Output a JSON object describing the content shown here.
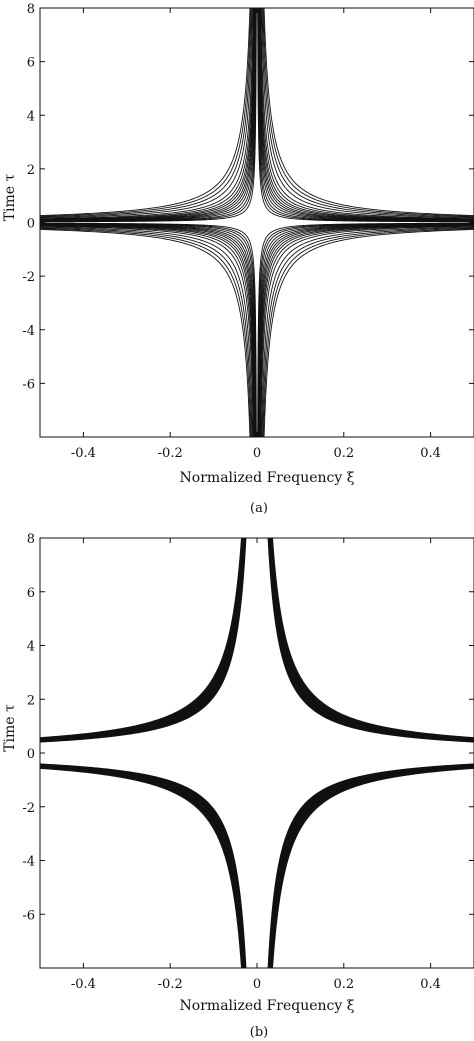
{
  "chart_data": [
    {
      "panel": "(a)",
      "type": "line",
      "xlabel": "Normalized Frequency ξ",
      "ylabel": "Time τ",
      "xlim": [
        -0.5,
        0.5
      ],
      "ylim": [
        -8,
        8
      ],
      "xticks": [
        "-0.4",
        "-0.2",
        "0",
        "0.2",
        "0.4"
      ],
      "yticks": [
        "8",
        "6",
        "4",
        "2",
        "0",
        "-2",
        "-4",
        "-6"
      ],
      "grid": false,
      "curve_form": "τ · ξ = ±c (hyperbolic contours)",
      "contour_levels": [
        0.012,
        0.016,
        0.02,
        0.025,
        0.03,
        0.035,
        0.04,
        0.046,
        0.052,
        0.06,
        0.07,
        0.085,
        0.1,
        0.115,
        0.13
      ],
      "caption": "(a)"
    },
    {
      "panel": "(b)",
      "type": "line",
      "xlabel": "Normalized Frequency ξ",
      "ylabel": "Time τ",
      "xlim": [
        -0.5,
        0.5
      ],
      "ylim": [
        -8,
        8
      ],
      "xticks": [
        "-0.4",
        "-0.2",
        "0",
        "0.2",
        "0.4"
      ],
      "yticks": [
        "8",
        "6",
        "4",
        "2",
        "0",
        "-2",
        "-4",
        "-6"
      ],
      "grid": false,
      "curve_form": "τ · ξ = ±c (hyperbolic contours)",
      "contour_levels": [
        0.21,
        0.215,
        0.22,
        0.225,
        0.23,
        0.235,
        0.24,
        0.245,
        0.25,
        0.255,
        0.26,
        0.265,
        0.27,
        0.28
      ],
      "caption": "(b)"
    }
  ]
}
